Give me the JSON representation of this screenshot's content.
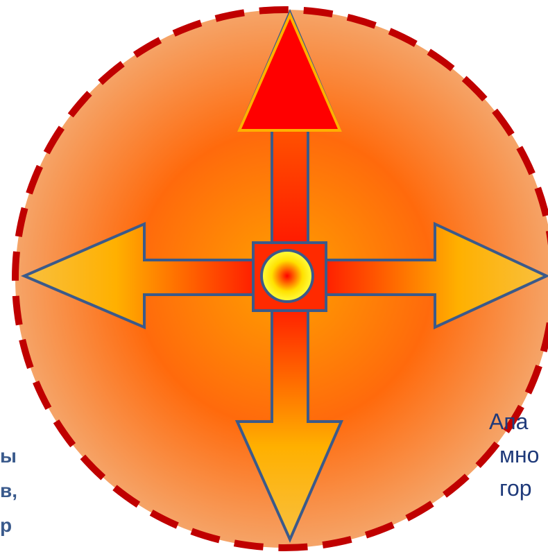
{
  "left_text": {
    "lines": [
      "ы",
      "в,",
      "р"
    ]
  },
  "right_text": {
    "lines": [
      "Апа",
      "мно",
      "гор"
    ]
  }
}
